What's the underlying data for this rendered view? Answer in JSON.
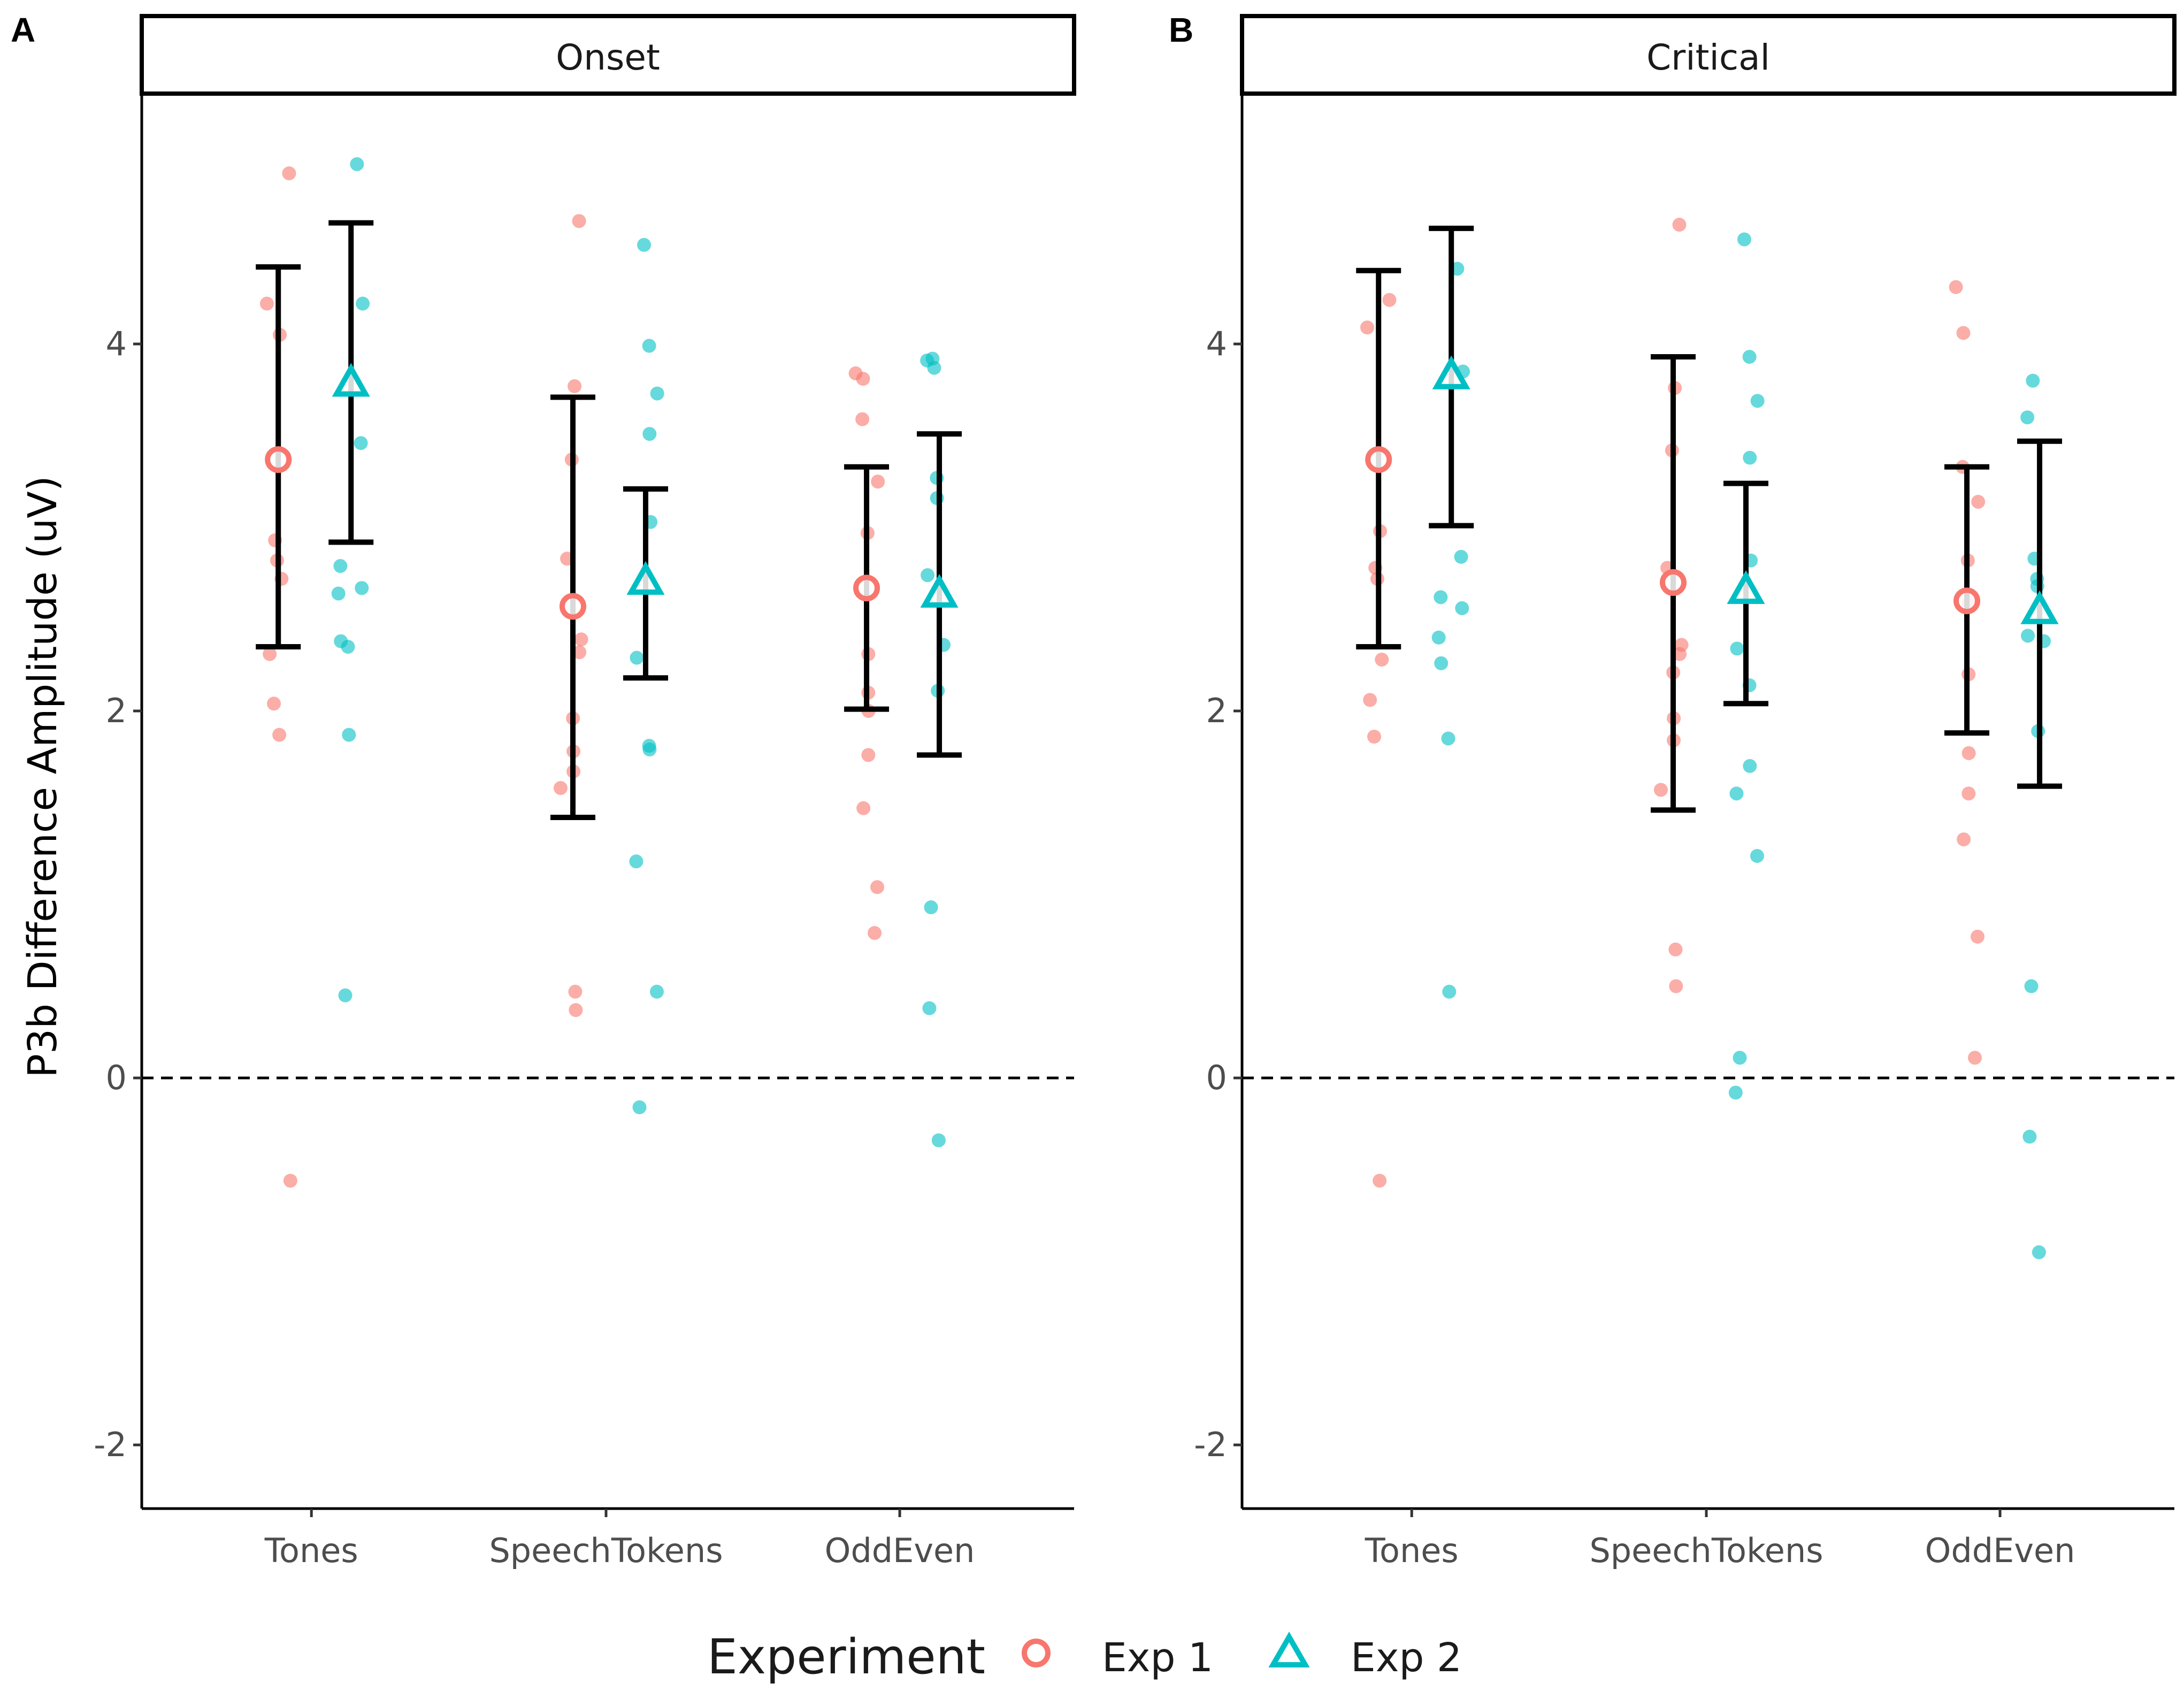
{
  "chart_data": [
    {
      "panel_label": "A",
      "type": "scatter",
      "title": "Onset",
      "xlabel": "",
      "ylabel": "P3b Difference Amplitude (uV)",
      "categories": [
        "Tones",
        "SpeechTokens",
        "OddEven"
      ],
      "y_ticks": [
        "-2",
        "0",
        "2",
        "4"
      ],
      "ylim": [
        -2.35,
        5.35
      ],
      "reference_line": 0,
      "series": [
        {
          "name": "Exp 1",
          "color": "#F8766D",
          "marker": "circle",
          "means": [
            3.37,
            2.57,
            2.67
          ],
          "error_low": [
            2.35,
            1.42,
            2.01
          ],
          "error_high": [
            4.42,
            3.71,
            3.33
          ],
          "points": [
            [
              4.93,
              4.22,
              4.05,
              2.93,
              2.82,
              2.72,
              2.31,
              2.04,
              1.87,
              -0.56
            ],
            [
              4.67,
              3.77,
              3.37,
              2.83,
              2.39,
              2.32,
              1.96,
              1.78,
              1.67,
              1.58,
              0.47,
              0.37
            ],
            [
              3.84,
              3.81,
              3.59,
              3.25,
              2.97,
              2.31,
              2.1,
              2.0,
              1.76,
              1.47,
              1.04,
              0.79
            ]
          ]
        },
        {
          "name": "Exp 2",
          "color": "#00BFC4",
          "marker": "triangle",
          "means": [
            3.78,
            2.7,
            2.63
          ],
          "error_low": [
            2.92,
            2.18,
            1.76
          ],
          "error_high": [
            4.66,
            3.21,
            3.51
          ],
          "points": [
            [
              4.98,
              4.22,
              3.46,
              2.79,
              2.67,
              2.64,
              2.38,
              2.35,
              1.87,
              0.45
            ],
            [
              4.54,
              3.99,
              3.73,
              3.51,
              3.03,
              2.29,
              1.81,
              1.79,
              1.18,
              0.47,
              -0.16
            ],
            [
              3.92,
              3.91,
              3.87,
              3.27,
              3.16,
              2.74,
              2.36,
              2.11,
              0.93,
              0.38,
              -0.34
            ]
          ]
        }
      ]
    },
    {
      "panel_label": "B",
      "type": "scatter",
      "title": "Critical",
      "xlabel": "",
      "ylabel": "",
      "categories": [
        "Tones",
        "SpeechTokens",
        "OddEven"
      ],
      "y_ticks": [
        "-2",
        "0",
        "2",
        "4"
      ],
      "ylim": [
        -2.35,
        5.35
      ],
      "reference_line": 0,
      "series": [
        {
          "name": "Exp 1",
          "color": "#F8766D",
          "marker": "circle",
          "means": [
            3.37,
            2.7,
            2.6
          ],
          "error_low": [
            2.35,
            1.46,
            1.88
          ],
          "error_high": [
            4.4,
            3.93,
            3.33
          ],
          "points": [
            [
              4.24,
              4.09,
              2.98,
              2.78,
              2.72,
              2.28,
              2.06,
              1.86,
              -0.56
            ],
            [
              4.65,
              3.76,
              3.42,
              2.78,
              2.36,
              2.31,
              2.21,
              1.96,
              1.84,
              1.57,
              0.7,
              0.5
            ],
            [
              4.31,
              4.06,
              3.33,
              3.14,
              2.82,
              2.59,
              2.2,
              1.77,
              1.55,
              1.3,
              0.77,
              0.11
            ]
          ]
        },
        {
          "name": "Exp 2",
          "color": "#00BFC4",
          "marker": "triangle",
          "means": [
            3.82,
            2.65,
            2.54
          ],
          "error_low": [
            3.01,
            2.04,
            1.59
          ],
          "error_high": [
            4.63,
            3.24,
            3.47
          ],
          "points": [
            [
              4.41,
              3.85,
              2.84,
              2.62,
              2.56,
              2.4,
              2.26,
              1.85,
              0.47
            ],
            [
              4.57,
              3.93,
              3.69,
              3.38,
              2.82,
              2.34,
              2.14,
              1.7,
              1.55,
              1.21,
              0.11,
              -0.08
            ],
            [
              3.8,
              3.6,
              2.83,
              2.72,
              2.68,
              2.41,
              2.38,
              1.89,
              0.5,
              -0.32,
              -0.95
            ]
          ]
        }
      ]
    }
  ],
  "legend": {
    "title": "Experiment",
    "items": [
      {
        "label": "Exp 1",
        "color": "#F8766D",
        "marker": "circle"
      },
      {
        "label": "Exp 2",
        "color": "#00BFC4",
        "marker": "triangle"
      }
    ]
  }
}
